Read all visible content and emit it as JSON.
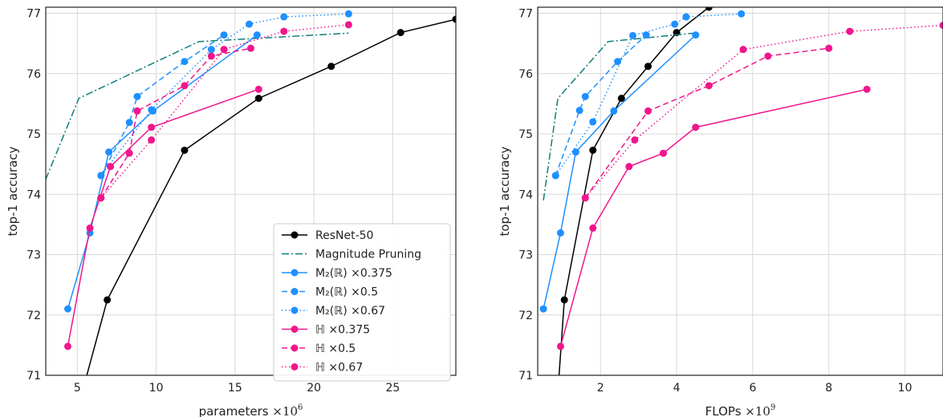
{
  "chart_data": [
    {
      "type": "line",
      "xlabel": "parameters",
      "xlabel_suffix": "×10",
      "xlabel_exp": "6",
      "ylabel": "top-1 accuracy",
      "xlim": [
        3,
        29
      ],
      "ylim": [
        71,
        77.1
      ],
      "xticks": [
        5,
        10,
        15,
        20,
        25
      ],
      "yticks": [
        71,
        72,
        73,
        74,
        75,
        76,
        77
      ],
      "grid": true,
      "legend_position": "bottom-right",
      "series": [
        {
          "name": "ResNet-50",
          "color": "#000000",
          "dash": "solid",
          "x": [
            5.5,
            6.9,
            11.8,
            16.5,
            21.1,
            25.5,
            29.0
          ],
          "y": [
            70.9,
            72.25,
            74.73,
            75.59,
            76.12,
            76.68,
            76.9
          ]
        },
        {
          "name": "Magnitude Pruning",
          "color": "#0e7f7a",
          "dash": "dashdot",
          "x": [
            3.0,
            5.1,
            12.7,
            22.2
          ],
          "y": [
            74.25,
            75.59,
            76.53,
            76.67
          ]
        },
        {
          "name": "M₂(ℝ) ×0.375",
          "color": "#1e90ff",
          "dash": "solid",
          "x": [
            4.4,
            5.8,
            7.0,
            9.8,
            16.4
          ],
          "y": [
            72.1,
            73.36,
            74.7,
            75.38,
            76.64
          ]
        },
        {
          "name": "M₂(ℝ) ×0.5",
          "color": "#1e90ff",
          "dash": "dashed",
          "x": [
            6.5,
            8.3,
            8.8,
            11.8,
            14.3
          ],
          "y": [
            74.31,
            75.19,
            75.62,
            76.2,
            76.64
          ]
        },
        {
          "name": "M₂(ℝ) ×0.67",
          "color": "#1e90ff",
          "dash": "dotted",
          "x": [
            6.5,
            9.7,
            13.5,
            15.9,
            18.1,
            22.2
          ],
          "y": [
            74.31,
            75.4,
            76.4,
            76.82,
            76.94,
            76.99
          ]
        },
        {
          "name": "ℍ ×0.375",
          "color": "#f0168c",
          "dash": "solid",
          "x": [
            4.4,
            5.8,
            7.1,
            9.7,
            16.5
          ],
          "y": [
            71.48,
            73.44,
            74.46,
            75.11,
            75.74
          ]
        },
        {
          "name": "ℍ ×0.5",
          "color": "#f0168c",
          "dash": "dashed",
          "x": [
            6.5,
            8.3,
            8.8,
            11.8,
            13.5,
            16.0
          ],
          "y": [
            73.94,
            74.68,
            75.38,
            75.8,
            76.29,
            76.42
          ]
        },
        {
          "name": "ℍ ×0.67",
          "color": "#f0168c",
          "dash": "dotted",
          "x": [
            6.5,
            9.7,
            14.3,
            18.1,
            22.2
          ],
          "y": [
            73.94,
            74.9,
            76.4,
            76.7,
            76.81
          ]
        }
      ]
    },
    {
      "type": "line",
      "xlabel": "FLOPs",
      "xlabel_suffix": "×10",
      "xlabel_exp": "9",
      "ylabel": "top-1 accuracy",
      "xlim": [
        0.35,
        11.0
      ],
      "ylim": [
        71,
        77.1
      ],
      "xticks": [
        2,
        4,
        6,
        8,
        10
      ],
      "yticks": [
        71,
        72,
        73,
        74,
        75,
        76,
        77
      ],
      "grid": true,
      "series": [
        {
          "name": "ResNet-50",
          "color": "#000000",
          "dash": "solid",
          "x": [
            0.9,
            1.05,
            1.8,
            2.55,
            3.25,
            4.0,
            4.85
          ],
          "y": [
            70.9,
            72.25,
            74.73,
            75.59,
            76.12,
            76.68,
            77.1
          ]
        },
        {
          "name": "Magnitude Pruning",
          "color": "#0e7f7a",
          "dash": "dashdot",
          "x": [
            0.5,
            0.88,
            2.2,
            4.45
          ],
          "y": [
            73.9,
            75.59,
            76.53,
            76.67
          ]
        },
        {
          "name": "M₂(ℝ) ×0.375",
          "color": "#1e90ff",
          "dash": "solid",
          "x": [
            0.5,
            0.95,
            1.35,
            2.35,
            4.5
          ],
          "y": [
            72.1,
            73.36,
            74.7,
            75.38,
            76.64
          ]
        },
        {
          "name": "M₂(ℝ) ×0.5",
          "color": "#1e90ff",
          "dash": "dashed",
          "x": [
            0.82,
            1.45,
            1.6,
            2.45,
            3.2
          ],
          "y": [
            74.31,
            75.39,
            75.62,
            76.2,
            76.64
          ]
        },
        {
          "name": "M₂(ℝ) ×0.67",
          "color": "#1e90ff",
          "dash": "dotted",
          "x": [
            0.82,
            1.8,
            2.85,
            3.95,
            4.25,
            5.7
          ],
          "y": [
            74.31,
            75.2,
            76.63,
            76.82,
            76.94,
            76.99
          ]
        },
        {
          "name": "ℍ ×0.375",
          "color": "#f0168c",
          "dash": "solid",
          "x": [
            0.95,
            1.8,
            2.75,
            3.65,
            4.5,
            9.0
          ],
          "y": [
            71.48,
            73.44,
            74.46,
            74.68,
            75.11,
            75.74
          ]
        },
        {
          "name": "ℍ ×0.5",
          "color": "#f0168c",
          "dash": "dashed",
          "x": [
            1.6,
            3.25,
            4.85,
            6.4,
            8.0
          ],
          "y": [
            73.94,
            75.38,
            75.8,
            76.29,
            76.42
          ]
        },
        {
          "name": "ℍ ×0.67",
          "color": "#f0168c",
          "dash": "dotted",
          "x": [
            1.6,
            2.9,
            5.75,
            8.55,
            11.0
          ],
          "y": [
            73.94,
            74.9,
            76.4,
            76.7,
            76.8
          ]
        }
      ]
    }
  ]
}
